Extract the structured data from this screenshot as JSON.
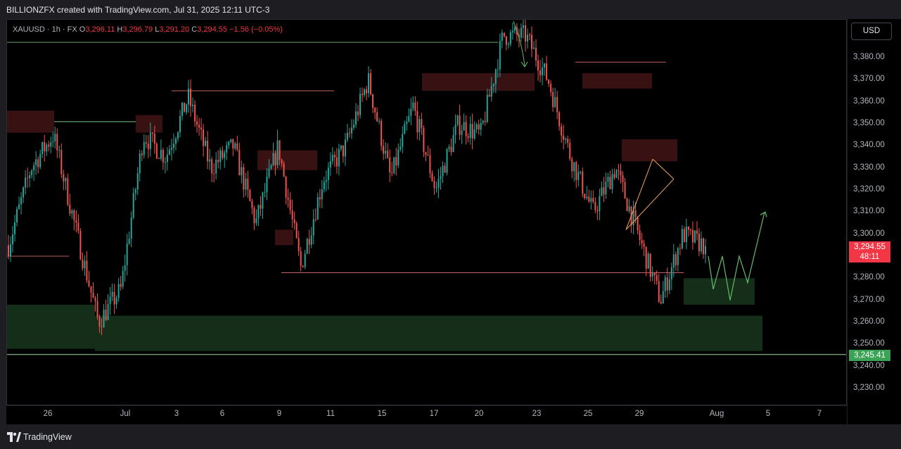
{
  "header": {
    "title": "BILLIONZFX created with TradingView.com, Jul 31, 2025 12:11 UTC-3"
  },
  "legend": {
    "symbol": "XAUUSD · 1h · FX",
    "open_label": "O",
    "open": "3,296.11",
    "high_label": "H",
    "high": "3,296.79",
    "low_label": "L",
    "low": "3,291.20",
    "close_label": "C",
    "close": "3,294.55",
    "change": "−1.56 (−0.05%)"
  },
  "price_scale": {
    "currency_button": "USD",
    "last_price": "3,294.55",
    "countdown": "48:11",
    "level_label": "3,245.41"
  },
  "footer": {
    "brand": "TradingView"
  },
  "colors": {
    "up": "#26a69a",
    "down": "#ef5350",
    "supply_zone": "#3b1214",
    "demand_zone": "#16301a",
    "background": "#000000"
  },
  "chart_data": {
    "type": "candlestick",
    "symbol": "XAUUSD",
    "interval": "1h",
    "ylim": [
      3223,
      3396
    ],
    "y_ticks": [
      3230,
      3240,
      3250,
      3260,
      3270,
      3280,
      3290,
      3300,
      3310,
      3320,
      3330,
      3340,
      3350,
      3360,
      3370,
      3380
    ],
    "y_tick_labels": [
      "3,230.00",
      "3,240.00",
      "3,250.00",
      "3,260.00",
      "3,270.00",
      "3,280.00",
      "3,290.00",
      "3,300.00",
      "3,310.00",
      "3,320.00",
      "3,330.00",
      "3,340.00",
      "3,350.00",
      "3,360.00",
      "3,370.00",
      "3,380.00"
    ],
    "x_tick_labels": [
      "26",
      "Jul",
      "3",
      "6",
      "9",
      "11",
      "15",
      "17",
      "20",
      "23",
      "25",
      "29",
      "Aug",
      "5",
      "7"
    ],
    "price_path": [
      [
        "Jun 25",
        3295
      ],
      [
        "Jun 26",
        3330
      ],
      [
        "Jun 26 pm",
        3345
      ],
      [
        "Jun 27",
        3302
      ],
      [
        "Jun 29",
        3260
      ],
      [
        "Jun 30",
        3275
      ],
      [
        "Jul 1",
        3345
      ],
      [
        "Jul 2",
        3335
      ],
      [
        "Jul 3",
        3362
      ],
      [
        "Jul 4",
        3330
      ],
      [
        "Jul 6",
        3340
      ],
      [
        "Jul 7",
        3305
      ],
      [
        "Jul 8",
        3340
      ],
      [
        "Jul 9",
        3285
      ],
      [
        "Jul 10",
        3325
      ],
      [
        "Jul 11",
        3340
      ],
      [
        "Jul 14",
        3370
      ],
      [
        "Jul 15",
        3325
      ],
      [
        "Jul 16",
        3358
      ],
      [
        "Jul 17",
        3320
      ],
      [
        "Jul 18",
        3350
      ],
      [
        "Jul 21",
        3345
      ],
      [
        "Jul 22",
        3390
      ],
      [
        "Jul 23",
        3390
      ],
      [
        "Jul 24",
        3370
      ],
      [
        "Jul 25",
        3335
      ],
      [
        "Jul 28",
        3310
      ],
      [
        "Jul 29",
        3330
      ],
      [
        "Jul 30",
        3300
      ],
      [
        "Jul 30 pm",
        3270
      ],
      [
        "Jul 31",
        3300
      ],
      [
        "Jul 31 now",
        3294.55
      ]
    ],
    "horizontal_levels": [
      3245.41,
      3282.5,
      3351,
      3365,
      3378,
      3387
    ],
    "projection_path": [
      3290,
      3275,
      3290,
      3270,
      3290,
      3278,
      3310
    ],
    "supply_zones": [
      {
        "from": 3346,
        "to": 3356
      },
      {
        "from": 3346,
        "to": 3354
      },
      {
        "from": 3329,
        "to": 3338
      },
      {
        "from": 3295,
        "to": 3302
      },
      {
        "from": 3365,
        "to": 3373
      },
      {
        "from": 3366,
        "to": 3373
      },
      {
        "from": 3333,
        "to": 3343
      }
    ],
    "demand_zones": [
      {
        "from": 3248,
        "to": 3268
      },
      {
        "from": 3247,
        "to": 3263
      },
      {
        "from": 3268,
        "to": 3280
      }
    ]
  }
}
